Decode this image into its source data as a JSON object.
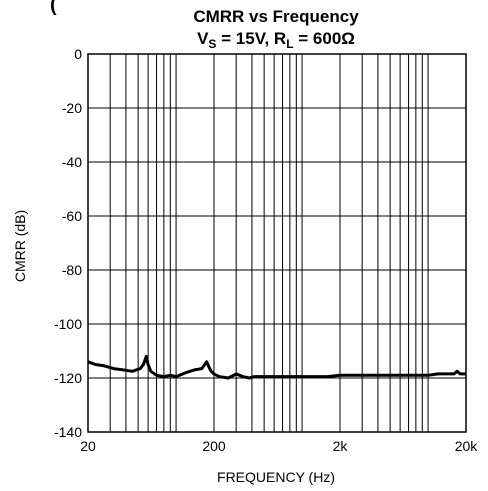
{
  "chart_data": {
    "type": "line",
    "title": "CMRR vs Frequency",
    "subtitle": {
      "vs_main": "V",
      "vs_sub": "S",
      "mid": " = 15V, R",
      "rl_sub": "L",
      "rest": " = 600Ω"
    },
    "top_cut_text": "(",
    "xlabel": "FREQUENCY (Hz)",
    "ylabel": "CMRR (dB)",
    "xscale": "log",
    "xlim": [
      20,
      20000
    ],
    "ylim": [
      -140,
      0
    ],
    "y_ticks": [
      0,
      -20,
      -40,
      -60,
      -80,
      -100,
      -120,
      -140
    ],
    "y_tick_labels": [
      "0",
      "-20",
      "-40",
      "-60",
      "-80",
      "-100",
      "-120",
      "-140"
    ],
    "x_ticks": [
      20,
      200,
      2000,
      20000
    ],
    "x_tick_labels": [
      "20",
      "200",
      "2k",
      "20k"
    ],
    "grid": true,
    "legend": "none",
    "line_color": "#000000",
    "series": [
      {
        "x": [
          20,
          23,
          27,
          32,
          38,
          45,
          52,
          55,
          58,
          60,
          63,
          70,
          80,
          90,
          100,
          120,
          140,
          160,
          175,
          185,
          190,
          200,
          210,
          220,
          260,
          300,
          320,
          340,
          380,
          420,
          500,
          600,
          700,
          800,
          1000,
          1300,
          1600,
          2000,
          2500,
          3000,
          4000,
          5000,
          6000,
          7000,
          8000,
          10000,
          12000,
          14000,
          16000,
          17000,
          18000,
          20000
        ],
        "y": [
          -114,
          -115,
          -115.5,
          -116.5,
          -117,
          -117.5,
          -116.5,
          -115,
          -112,
          -115,
          -117.5,
          -119,
          -119.5,
          -119,
          -119.5,
          -118,
          -117,
          -116.5,
          -114,
          -116.5,
          -117.5,
          -118.5,
          -119,
          -119.5,
          -120,
          -118.5,
          -119,
          -119.5,
          -120,
          -119.5,
          -119.5,
          -119.5,
          -119.5,
          -119.5,
          -119.5,
          -119.5,
          -119.5,
          -119,
          -119,
          -119,
          -119,
          -119,
          -119,
          -119,
          -119,
          -119,
          -118.5,
          -118.5,
          -118.5,
          -117.5,
          -118.5,
          -118.5
        ]
      }
    ]
  }
}
